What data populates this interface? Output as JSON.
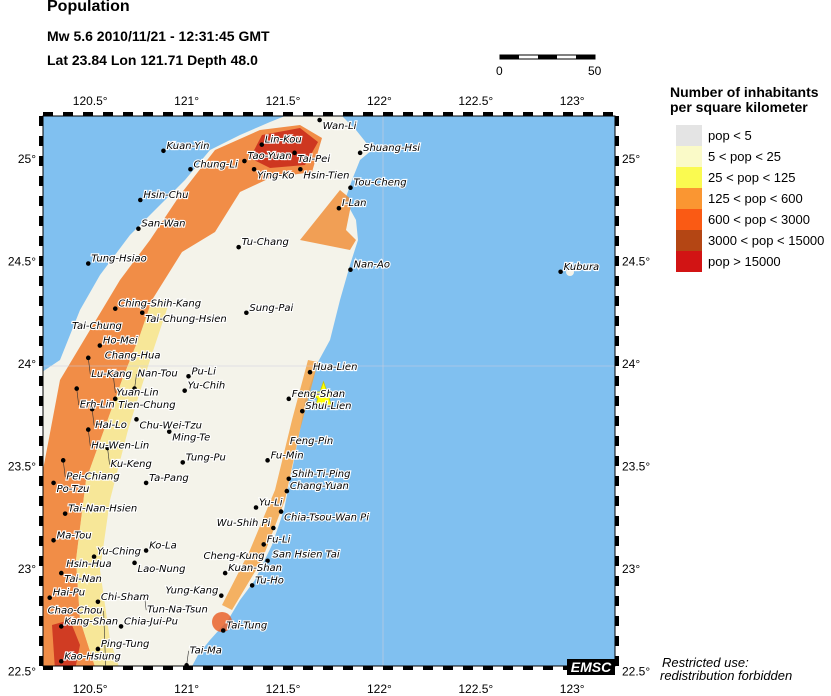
{
  "header": {
    "title": "Population",
    "line1": "Mw 5.6  2010/11/21 - 12:31:45 GMT",
    "line2": "Lat 23.84    Lon 121.71     Depth  48.0"
  },
  "scale_bar": {
    "start_label": "0",
    "end_label": "50"
  },
  "map": {
    "lon_range": [
      120.25,
      123.23
    ],
    "lat_range": [
      22.52,
      25.21
    ],
    "lon_ticks": [
      "120.5°",
      "121°",
      "121.5°",
      "122°",
      "122.5°",
      "123°"
    ],
    "lon_tick_values": [
      120.5,
      121,
      121.5,
      122,
      122.5,
      123
    ],
    "lat_ticks": [
      "25°",
      "24.5°",
      "24°",
      "23.5°",
      "23°",
      "22.5°"
    ],
    "lat_tick_values": [
      25,
      24.5,
      24,
      23.5,
      23,
      22.5
    ],
    "sea_color": "#80c0f0",
    "epicenter": {
      "lat": 23.84,
      "lon": 121.71,
      "color": "#ffff00",
      "icon": "star-icon"
    },
    "cities": [
      {
        "name": "Wan-Li",
        "lat": 25.19,
        "lon": 121.69
      },
      {
        "name": "Tao-Yuan",
        "lat": 24.99,
        "lon": 121.3
      },
      {
        "name": "Lin-Kou",
        "lat": 25.07,
        "lon": 121.39
      },
      {
        "name": "Tai-Pei",
        "lat": 25.03,
        "lon": 121.56
      },
      {
        "name": "Kuan-Yin",
        "lat": 25.04,
        "lon": 120.88
      },
      {
        "name": "Chung-Li",
        "lat": 24.95,
        "lon": 121.02
      },
      {
        "name": "Ying-Ko",
        "lat": 24.95,
        "lon": 121.35
      },
      {
        "name": "Hsin-Tien",
        "lat": 24.95,
        "lon": 121.59
      },
      {
        "name": "Shuang-Hsi",
        "lat": 25.03,
        "lon": 121.9
      },
      {
        "name": "Tou-Cheng",
        "lat": 24.86,
        "lon": 121.85
      },
      {
        "name": "I-Lan",
        "lat": 24.76,
        "lon": 121.79
      },
      {
        "name": "Hsin-Chu",
        "lat": 24.8,
        "lon": 120.76
      },
      {
        "name": "San-Wan",
        "lat": 24.66,
        "lon": 120.75
      },
      {
        "name": "Tu-Chang",
        "lat": 24.57,
        "lon": 121.27
      },
      {
        "name": "Nan-Ao",
        "lat": 24.46,
        "lon": 121.85
      },
      {
        "name": "Tung-Hsiao",
        "lat": 24.49,
        "lon": 120.49
      },
      {
        "name": "Ching-Shih-Kang",
        "lat": 24.27,
        "lon": 120.63
      },
      {
        "name": "Tai-Chung-Hsien",
        "lat": 24.25,
        "lon": 120.77
      },
      {
        "name": "Sung-Pai",
        "lat": 24.25,
        "lon": 121.31
      },
      {
        "name": "Tai-Chung",
        "lat": 24.16,
        "lon": 120.68,
        "nodot": true
      },
      {
        "name": "Ho-Mei",
        "lat": 24.09,
        "lon": 120.55
      },
      {
        "name": "Chang-Hua",
        "lat": 24.07,
        "lon": 120.56,
        "nodot": true
      },
      {
        "name": "Lu-Kang",
        "lat": 24.03,
        "lon": 120.49
      },
      {
        "name": "Yuan-Lin",
        "lat": 23.94,
        "lon": 120.62
      },
      {
        "name": "Pu-Li",
        "lat": 23.94,
        "lon": 121.01
      },
      {
        "name": "Erh-Lin",
        "lat": 23.88,
        "lon": 120.43
      },
      {
        "name": "Nan-Tou",
        "lat": 23.88,
        "lon": 120.73
      },
      {
        "name": "Yu-Chih",
        "lat": 23.87,
        "lon": 120.99
      },
      {
        "name": "Tien-Chung",
        "lat": 23.83,
        "lon": 120.63
      },
      {
        "name": "Hua-Lien",
        "lat": 23.96,
        "lon": 121.64
      },
      {
        "name": "Feng-Shan",
        "lat": 23.83,
        "lon": 121.53
      },
      {
        "name": "Shui-Lien",
        "lat": 23.77,
        "lon": 121.6
      },
      {
        "name": "Hai-Lo",
        "lat": 23.78,
        "lon": 120.51
      },
      {
        "name": "Chu-Wei-Tzu",
        "lat": 23.73,
        "lon": 120.74
      },
      {
        "name": "Hu-Wen-Lin",
        "lat": 23.68,
        "lon": 120.49
      },
      {
        "name": "Ming-Te",
        "lat": 23.67,
        "lon": 120.91
      },
      {
        "name": "Ku-Keng",
        "lat": 23.59,
        "lon": 120.59
      },
      {
        "name": "Pei-Chiang",
        "lat": 23.53,
        "lon": 120.36
      },
      {
        "name": "Tung-Pu",
        "lat": 23.52,
        "lon": 120.98
      },
      {
        "name": "Feng-Pin",
        "lat": 23.6,
        "lon": 121.52,
        "nodot": true
      },
      {
        "name": "Fu-Min",
        "lat": 23.53,
        "lon": 121.42
      },
      {
        "name": "Po-Tzu",
        "lat": 23.42,
        "lon": 120.31
      },
      {
        "name": "Shih-Ti-Ping",
        "lat": 23.44,
        "lon": 121.53
      },
      {
        "name": "Ta-Pang",
        "lat": 23.42,
        "lon": 120.79
      },
      {
        "name": "Chang-Yuan",
        "lat": 23.38,
        "lon": 121.52
      },
      {
        "name": "Yu-Li",
        "lat": 23.3,
        "lon": 121.36
      },
      {
        "name": "Tai-Nan-Hsien",
        "lat": 23.27,
        "lon": 120.37
      },
      {
        "name": "Chia-Tsou-Wan Pi",
        "lat": 23.28,
        "lon": 121.49
      },
      {
        "name": "Wu-Shih Pi",
        "lat": 23.2,
        "lon": 121.45
      },
      {
        "name": "Ma-Tou",
        "lat": 23.14,
        "lon": 120.31
      },
      {
        "name": "Fu-Li",
        "lat": 23.12,
        "lon": 121.4
      },
      {
        "name": "San Hsien Tai",
        "lat": 23.1,
        "lon": 121.43,
        "nodot": true
      },
      {
        "name": "Ko-La",
        "lat": 23.09,
        "lon": 120.79
      },
      {
        "name": "Yu-Ching",
        "lat": 23.06,
        "lon": 120.52
      },
      {
        "name": "Cheng-Kung",
        "lat": 23.04,
        "lon": 121.42
      },
      {
        "name": "Lao-Nung",
        "lat": 23.03,
        "lon": 120.73
      },
      {
        "name": "Hsin-Hua",
        "lat": 23.0,
        "lon": 120.36,
        "nodot": true
      },
      {
        "name": "Tai-Nan",
        "lat": 22.98,
        "lon": 120.35
      },
      {
        "name": "Kuan-Shan",
        "lat": 22.98,
        "lon": 121.2
      },
      {
        "name": "Tu-Ho",
        "lat": 22.92,
        "lon": 121.34
      },
      {
        "name": "Hai-Pu",
        "lat": 22.86,
        "lon": 120.29
      },
      {
        "name": "Yung-Kang",
        "lat": 22.87,
        "lon": 121.18
      },
      {
        "name": "Chi-Sham",
        "lat": 22.84,
        "lon": 120.54
      },
      {
        "name": "Tun-Na-Tsun",
        "lat": 22.88,
        "lon": 120.78,
        "nodot": true
      },
      {
        "name": "Kang-Shan",
        "lat": 22.72,
        "lon": 120.35
      },
      {
        "name": "Chia-Jui-Pu",
        "lat": 22.72,
        "lon": 120.66
      },
      {
        "name": "Tai-Tung",
        "lat": 22.7,
        "lon": 121.19
      },
      {
        "name": "Ping-Tung",
        "lat": 22.61,
        "lon": 120.54
      },
      {
        "name": "Kao-Hsiung",
        "lat": 22.55,
        "lon": 120.35
      },
      {
        "name": "Tai-Ma",
        "lat": 22.53,
        "lon": 121.0
      },
      {
        "name": "Chao-Chou",
        "lat": 22.53,
        "lon": 120.58,
        "nodot": true
      },
      {
        "name": "Kubura",
        "lat": 24.45,
        "lon": 122.94
      }
    ]
  },
  "legend": {
    "title_line1": "Number of inhabitants",
    "title_line2": "per square kilometer",
    "items": [
      {
        "label": "pop < 5",
        "color": "#e4e4e4"
      },
      {
        "label": "5 < pop < 25",
        "color": "#fafac8"
      },
      {
        "label": "25 < pop < 125",
        "color": "#fafa50"
      },
      {
        "label": "125 < pop < 600",
        "color": "#fa9632"
      },
      {
        "label": "600 < pop < 3000",
        "color": "#fa5a14"
      },
      {
        "label": "3000 < pop < 15000",
        "color": "#b44614"
      },
      {
        "label": "pop > 15000",
        "color": "#d21414"
      }
    ]
  },
  "notice": {
    "line1": "Restricted use:",
    "line2": "redistribution forbidden"
  },
  "logo": {
    "text": "EMSC"
  }
}
